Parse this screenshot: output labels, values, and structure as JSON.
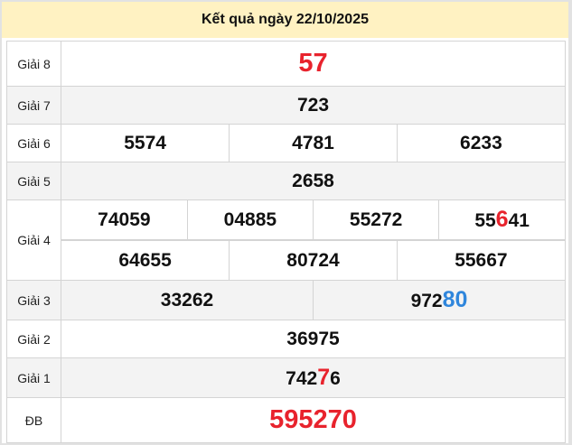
{
  "header": {
    "title": "Kết quả ngày 22/10/2025"
  },
  "colors": {
    "highlight_red": "#e8232d",
    "highlight_blue": "#2f86dc",
    "header_bg": "#fff2c2"
  },
  "prizes": {
    "g8": {
      "label": "Giải 8",
      "numbers": [
        [
          {
            "t": "57",
            "c": "red"
          }
        ]
      ]
    },
    "g7": {
      "label": "Giải 7",
      "numbers": [
        [
          {
            "t": "723"
          }
        ]
      ]
    },
    "g6": {
      "label": "Giải 6",
      "numbers": [
        [
          {
            "t": "5574"
          }
        ],
        [
          {
            "t": "4781"
          }
        ],
        [
          {
            "t": "6233"
          }
        ]
      ]
    },
    "g5": {
      "label": "Giải 5",
      "numbers": [
        [
          {
            "t": "2658"
          }
        ]
      ]
    },
    "g4": {
      "label": "Giải 4",
      "row1": [
        [
          {
            "t": "74059"
          }
        ],
        [
          {
            "t": "04885"
          }
        ],
        [
          {
            "t": "55272"
          }
        ],
        [
          {
            "t": "55"
          },
          {
            "t": "6",
            "c": "red"
          },
          {
            "t": "41"
          }
        ]
      ],
      "row2": [
        [
          {
            "t": "64655"
          }
        ],
        [
          {
            "t": "80724"
          }
        ],
        [
          {
            "t": "55667"
          }
        ]
      ]
    },
    "g3": {
      "label": "Giải 3",
      "numbers": [
        [
          {
            "t": "33262"
          }
        ],
        [
          {
            "t": "972"
          },
          {
            "t": "80",
            "c": "blue"
          }
        ]
      ]
    },
    "g2": {
      "label": "Giải 2",
      "numbers": [
        [
          {
            "t": "36975"
          }
        ]
      ]
    },
    "g1": {
      "label": "Giải 1",
      "numbers": [
        [
          {
            "t": "742"
          },
          {
            "t": "7",
            "c": "red"
          },
          {
            "t": "6"
          }
        ]
      ]
    },
    "db": {
      "label": "ĐB",
      "numbers": [
        [
          {
            "t": "595270",
            "c": "red"
          }
        ]
      ]
    }
  }
}
